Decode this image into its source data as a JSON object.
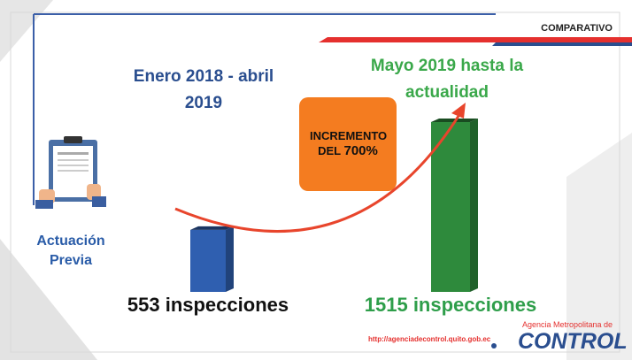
{
  "header": "COMPARATIVO",
  "chart_data": {
    "type": "bar",
    "categories": [
      "Enero 2018 - abril 2019",
      "Mayo 2019 hasta la actualidad"
    ],
    "values": [
      553,
      1515
    ],
    "value_labels": [
      "553 inspecciones",
      "1515 inspecciones"
    ],
    "colors": [
      "#2f5fb0",
      "#2e8a3c"
    ],
    "annotation": [
      "INCREMENTO",
      "DEL ",
      "700%"
    ]
  },
  "side_label": "Actuación Previa",
  "url": "http://agenciadecontrol.quito.gob.ec",
  "logo": {
    "top": "Agencia Metropolitana de",
    "name": "CONTROL"
  }
}
